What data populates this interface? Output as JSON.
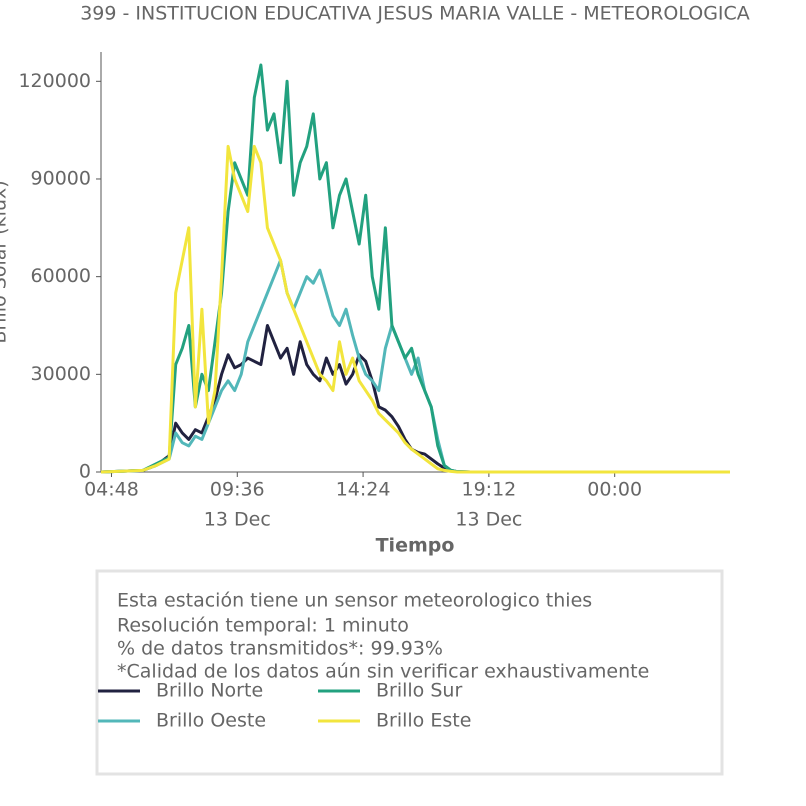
{
  "chart_data": {
    "type": "line",
    "title": "399 - INSTITUCION EDUCATIVA JESUS MARIA VALLE - METEOROLOGICA",
    "x_label": "Tiempo",
    "y_label": "Brillo Solar (klux)",
    "x": [
      4.4,
      6.0,
      6.5,
      7.0,
      7.25,
      7.5,
      7.75,
      8.0,
      8.25,
      8.5,
      8.75,
      9.0,
      9.25,
      9.5,
      9.75,
      10.0,
      10.25,
      10.5,
      10.75,
      11.0,
      11.25,
      11.5,
      11.75,
      12.0,
      12.25,
      12.5,
      12.75,
      13.0,
      13.25,
      13.5,
      13.75,
      14.0,
      14.25,
      14.5,
      14.75,
      15.0,
      15.25,
      15.5,
      15.75,
      16.0,
      16.25,
      16.5,
      16.75,
      17.0,
      17.25,
      17.5,
      17.75,
      18.0,
      18.5,
      19.0,
      28.4
    ],
    "xlim": [
      4.4,
      28.4
    ],
    "xticks": [
      {
        "value": 4.8,
        "label": "04:48"
      },
      {
        "value": 9.6,
        "label": "09:36",
        "sublabel": "13 Dec"
      },
      {
        "value": 14.4,
        "label": "14:24"
      },
      {
        "value": 19.2,
        "label": "19:12",
        "sublabel": "13 Dec"
      },
      {
        "value": 24,
        "label": "00:00"
      }
    ],
    "ylim": [
      0,
      129000
    ],
    "yticks": [
      0,
      30000,
      60000,
      90000,
      120000
    ],
    "grid": false,
    "legend": "bottom",
    "series": [
      {
        "name": "Brillo Norte",
        "color": "#212240",
        "values": [
          0,
          500,
          2000,
          5000,
          15000,
          12000,
          10000,
          13000,
          12000,
          17000,
          22000,
          30000,
          36000,
          32000,
          33000,
          35000,
          34000,
          33000,
          45000,
          40000,
          35000,
          38000,
          30000,
          40000,
          33000,
          30000,
          28000,
          35000,
          30000,
          33000,
          27000,
          30000,
          36000,
          34000,
          28000,
          20000,
          19000,
          17000,
          14000,
          10000,
          7000,
          6000,
          5500,
          4000,
          2500,
          1200,
          500,
          100,
          0,
          0,
          0
        ]
      },
      {
        "name": "Brillo Oeste",
        "color": "#52b7b9",
        "values": [
          0,
          500,
          2000,
          4000,
          12000,
          9000,
          8000,
          11000,
          10000,
          15000,
          20000,
          25000,
          28000,
          25000,
          30000,
          40000,
          45000,
          50000,
          55000,
          60000,
          65000,
          55000,
          50000,
          55000,
          60000,
          58000,
          62000,
          55000,
          48000,
          45000,
          50000,
          42000,
          35000,
          30000,
          28000,
          25000,
          38000,
          45000,
          40000,
          35000,
          30000,
          35000,
          25000,
          20000,
          10000,
          2000,
          500,
          100,
          0,
          0,
          0
        ]
      },
      {
        "name": "Brillo Sur",
        "color": "#22a17f",
        "values": [
          0,
          500,
          2500,
          4500,
          33000,
          38000,
          45000,
          20000,
          30000,
          25000,
          40000,
          55000,
          80000,
          95000,
          90000,
          85000,
          115000,
          125000,
          105000,
          110000,
          95000,
          120000,
          85000,
          95000,
          100000,
          110000,
          90000,
          95000,
          75000,
          85000,
          90000,
          80000,
          70000,
          85000,
          60000,
          50000,
          75000,
          45000,
          40000,
          35000,
          38000,
          30000,
          25000,
          20000,
          8000,
          2000,
          500,
          100,
          0,
          0,
          0
        ]
      },
      {
        "name": "Brillo Este",
        "color": "#f2e53d",
        "values": [
          0,
          500,
          2000,
          4000,
          55000,
          65000,
          75000,
          20000,
          50000,
          15000,
          25000,
          60000,
          100000,
          90000,
          85000,
          80000,
          100000,
          95000,
          75000,
          70000,
          65000,
          55000,
          50000,
          45000,
          40000,
          35000,
          30000,
          28000,
          25000,
          40000,
          30000,
          35000,
          28000,
          25000,
          22000,
          18000,
          16000,
          14000,
          12000,
          9000,
          7000,
          5500,
          4000,
          2500,
          1000,
          500,
          200,
          0,
          0,
          0,
          0
        ]
      }
    ],
    "note": {
      "lines": [
        "Esta estación tiene un sensor meteorologico thies",
        "Resolución temporal: 1 minuto",
        "% de datos transmitidos*: 99.93%",
        "*Calidad de los datos aún sin verificar exhaustivamente"
      ]
    }
  }
}
